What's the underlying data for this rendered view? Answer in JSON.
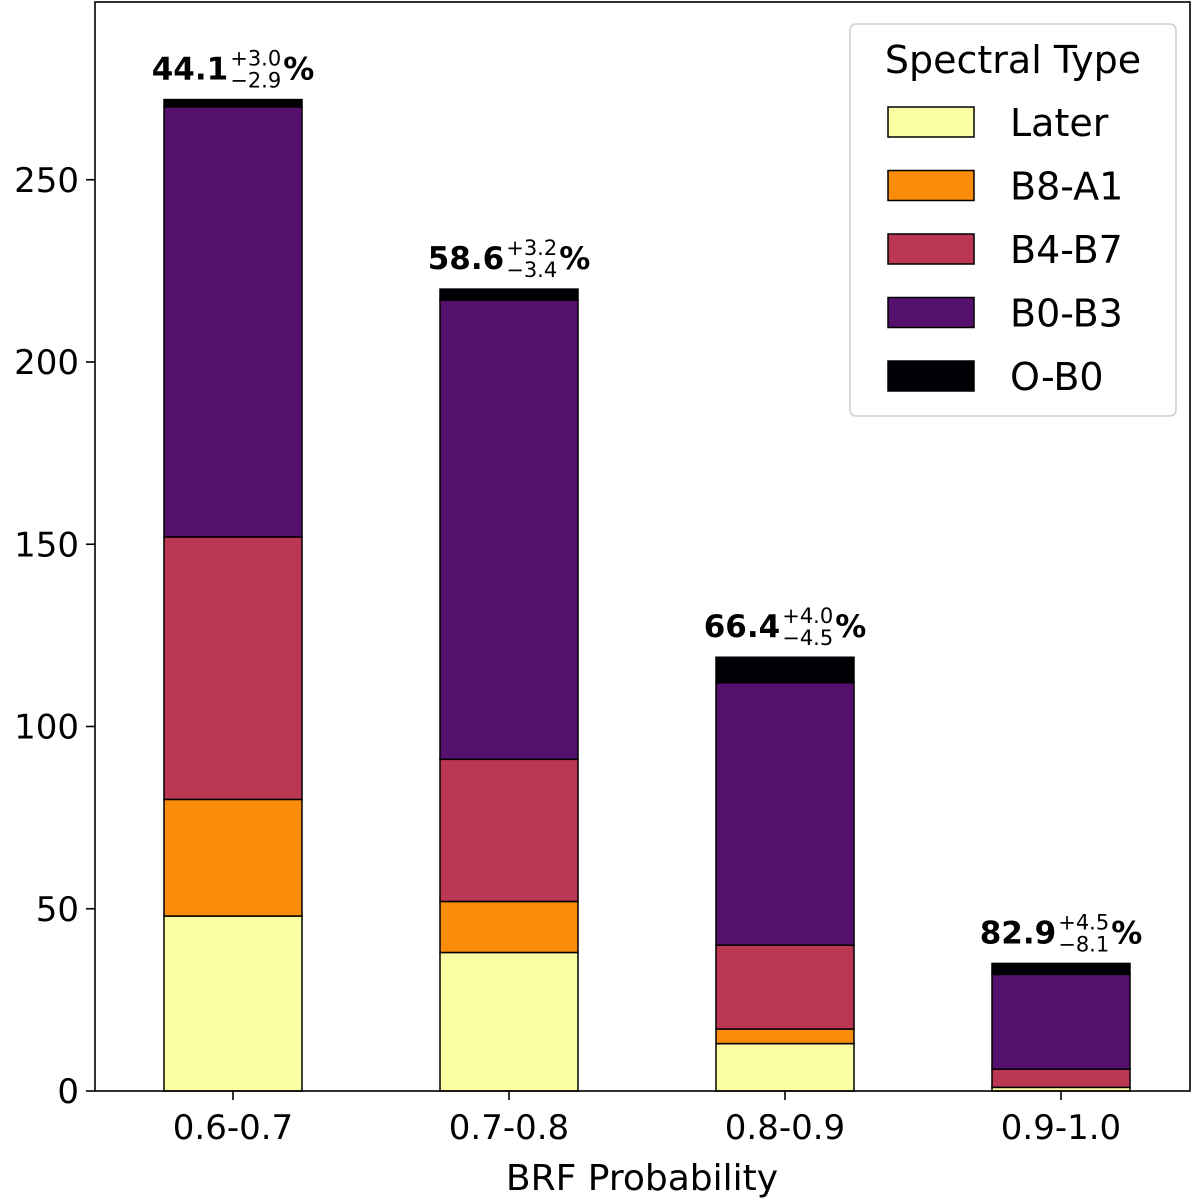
{
  "chart_data": {
    "type": "bar",
    "stacked": true,
    "categories": [
      "0.6-0.7",
      "0.7-0.8",
      "0.8-0.9",
      "0.9-1.0"
    ],
    "xlabel": "BRF Probability",
    "ylabel": "",
    "ylim": [
      0,
      296
    ],
    "yticks": [
      0,
      50,
      100,
      150,
      200,
      250
    ],
    "grid": false,
    "legend": {
      "title": "Spectral Type",
      "position": "top-right"
    },
    "series": [
      {
        "name": "Later",
        "color": "#fcfea4",
        "values": [
          48,
          38,
          13,
          1
        ]
      },
      {
        "name": "B8-A1",
        "color": "#f98c09",
        "values": [
          32,
          14,
          4,
          0
        ]
      },
      {
        "name": "B4-B7",
        "color": "#bb3754",
        "values": [
          72,
          39,
          23,
          5
        ]
      },
      {
        "name": "B0-B3",
        "color": "#56106e",
        "values": [
          118,
          126,
          72,
          26
        ]
      },
      {
        "name": "O-B0",
        "color": "#000004",
        "values": [
          2,
          3,
          7,
          3
        ]
      }
    ],
    "annotations": [
      {
        "category": "0.6-0.7",
        "value": "44.1",
        "plus": "+3.0",
        "minus": "−2.9",
        "suffix": "%"
      },
      {
        "category": "0.7-0.8",
        "value": "58.6",
        "plus": "+3.2",
        "minus": "−3.4",
        "suffix": "%"
      },
      {
        "category": "0.8-0.9",
        "value": "66.4",
        "plus": "+4.0",
        "minus": "−4.5",
        "suffix": "%"
      },
      {
        "category": "0.9-1.0",
        "value": "82.9",
        "plus": "+4.5",
        "minus": "−8.1",
        "suffix": "%"
      }
    ]
  }
}
